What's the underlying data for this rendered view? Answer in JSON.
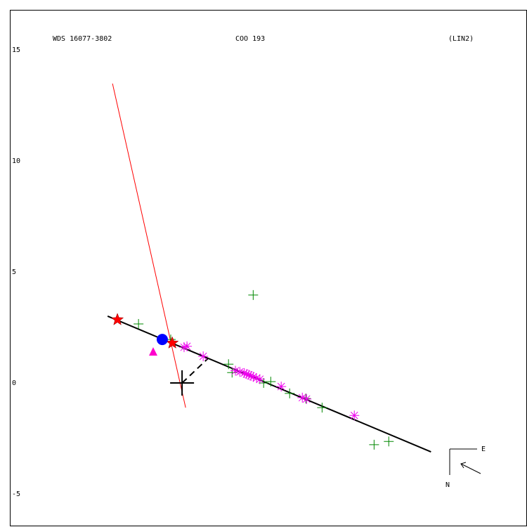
{
  "chart_data": {
    "type": "scatter",
    "title": "WDS 16077-3802",
    "subtitle": "COO 193",
    "annotation": "(LIN2)",
    "compass": {
      "east": "E",
      "north": "N"
    },
    "xlim": [
      -7.75,
      15.52
    ],
    "ylim": [
      -6.42,
      16.8
    ],
    "yticks": [
      -5,
      0,
      5,
      10,
      15
    ],
    "series": [
      {
        "style": "line",
        "color": "#000000",
        "x": [
          -3.35,
          11.2
        ],
        "values": [
          3.01,
          -3.1
        ]
      },
      {
        "style": "thin-line",
        "color": "#ff0000",
        "x": [
          -3.13,
          0.16
        ],
        "values": [
          13.48,
          -1.11
        ]
      },
      {
        "style": "dashed",
        "color": "#000000",
        "x": [
          0,
          1.17
        ],
        "values": [
          0,
          1.11
        ]
      },
      {
        "style": "plus",
        "color": "#008800",
        "x": [
          3.2,
          -1.96,
          -0.51,
          2.09,
          2.25,
          3.67,
          3.99,
          4.84,
          5.57,
          6.3,
          8.64,
          9.3
        ],
        "values": [
          3.96,
          2.66,
          1.96,
          0.85,
          0.47,
          0.0,
          0.06,
          -0.47,
          -0.7,
          -1.11,
          -2.78,
          -2.63
        ]
      },
      {
        "style": "asterisk",
        "color": "#ee00ee",
        "x": [
          0.09,
          0.22,
          0.95,
          2.4,
          2.6,
          2.8,
          2.9,
          3.0,
          3.1,
          3.2,
          3.35,
          3.5,
          4.46,
          5.41,
          5.6,
          7.75
        ],
        "values": [
          1.61,
          1.65,
          1.2,
          0.55,
          0.5,
          0.45,
          0.4,
          0.37,
          0.32,
          0.28,
          0.22,
          0.17,
          -0.16,
          -0.66,
          -0.72,
          -1.46
        ]
      },
      {
        "style": "star",
        "color": "#ff0000",
        "x": [
          -2.91,
          -0.44
        ],
        "values": [
          2.85,
          1.8
        ]
      },
      {
        "style": "circle",
        "color": "#0000ff",
        "x": [
          -0.89
        ],
        "values": [
          1.96
        ]
      },
      {
        "style": "triangle",
        "color": "#ff00cc",
        "x": [
          -1.3
        ],
        "values": [
          1.39
        ]
      },
      {
        "style": "cross",
        "color": "#000000",
        "x": [
          0
        ],
        "values": [
          0
        ]
      }
    ]
  }
}
